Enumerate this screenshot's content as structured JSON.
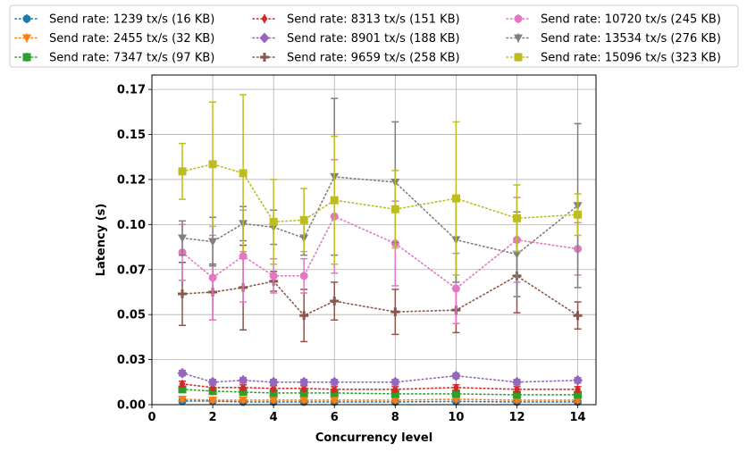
{
  "chart_data": {
    "type": "line",
    "title": "",
    "xlabel": "Concurrency level",
    "ylabel": "Latency (s)",
    "xlim": [
      0,
      14.6
    ],
    "ylim": [
      0,
      0.183
    ],
    "xticks": [
      0,
      2,
      4,
      6,
      8,
      10,
      12,
      14
    ],
    "yticks": [
      0.0,
      0.025,
      0.05,
      0.075,
      0.1,
      0.125,
      0.15,
      0.175
    ],
    "ytick_labels": [
      "0.00",
      "0.03",
      "0.05",
      "0.07",
      "0.10",
      "0.12",
      "0.15",
      "0.17"
    ],
    "grid": true,
    "legend_position": "top, outside plot, 3 columns",
    "x": [
      1,
      2,
      3,
      4,
      5,
      6,
      8,
      10,
      12,
      14
    ],
    "series": [
      {
        "name": "Send rate: 1239 tx/s (16 KB)",
        "color": "#1f77b4",
        "marker": "circle",
        "values": [
          0.002,
          0.002,
          0.0015,
          0.0015,
          0.0015,
          0.0015,
          0.0015,
          0.0018,
          0.0015,
          0.0015
        ],
        "err": [
          0.001,
          0.001,
          0.0008,
          0.0008,
          0.0008,
          0.0008,
          0.0008,
          0.0008,
          0.0008,
          0.0008
        ]
      },
      {
        "name": "Send rate: 2455 tx/s (32 KB)",
        "color": "#ff7f0e",
        "marker": "triangle-down",
        "values": [
          0.003,
          0.0025,
          0.0025,
          0.0025,
          0.0025,
          0.0025,
          0.0025,
          0.003,
          0.0025,
          0.0025
        ],
        "err": [
          0.001,
          0.001,
          0.001,
          0.001,
          0.001,
          0.001,
          0.001,
          0.001,
          0.001,
          0.001
        ]
      },
      {
        "name": "Send rate: 7347 tx/s (97 KB)",
        "color": "#2ca02c",
        "marker": "square",
        "values": [
          0.0085,
          0.0075,
          0.007,
          0.0065,
          0.0065,
          0.0065,
          0.006,
          0.006,
          0.0055,
          0.0055
        ],
        "err": [
          0.0015,
          0.0015,
          0.0015,
          0.0015,
          0.0015,
          0.0015,
          0.0015,
          0.0015,
          0.0015,
          0.0015
        ]
      },
      {
        "name": "Send rate: 8313 tx/s (151 KB)",
        "color": "#d62728",
        "marker": "diamond-thin",
        "values": [
          0.0115,
          0.0095,
          0.0095,
          0.009,
          0.009,
          0.0085,
          0.0085,
          0.0095,
          0.0085,
          0.0085
        ],
        "err": [
          0.0015,
          0.0015,
          0.0015,
          0.0015,
          0.0015,
          0.0015,
          0.0015,
          0.0015,
          0.0015,
          0.0015
        ]
      },
      {
        "name": "Send rate: 8901 tx/s (188 KB)",
        "color": "#9467bd",
        "marker": "diamond",
        "values": [
          0.0175,
          0.0125,
          0.0135,
          0.0125,
          0.0125,
          0.0125,
          0.0125,
          0.016,
          0.0125,
          0.0135
        ],
        "err": [
          0.0015,
          0.0015,
          0.0015,
          0.0015,
          0.0015,
          0.0015,
          0.0015,
          0.0015,
          0.0015,
          0.0015
        ]
      },
      {
        "name": "Send rate: 9659 tx/s (258 KB)",
        "color": "#8c564b",
        "marker": "plus",
        "values": [
          0.0615,
          0.0625,
          0.065,
          0.0685,
          0.0495,
          0.0575,
          0.0515,
          0.0525,
          0.0715,
          0.0495
        ],
        "err": [
          0.0175,
          0.0155,
          0.0235,
          0.0055,
          0.0145,
          0.0105,
          0.0125,
          0.0125,
          0.0205,
          0.0075
        ]
      },
      {
        "name": "Send rate: 10720 tx/s (245 KB)",
        "color": "#e377c2",
        "marker": "circle",
        "values": [
          0.0845,
          0.0705,
          0.0825,
          0.0715,
          0.0715,
          0.1045,
          0.0895,
          0.0645,
          0.0915,
          0.0865
        ],
        "err": [
          0.0155,
          0.0235,
          0.0255,
          0.0095,
          0.0095,
          0.0315,
          0.0235,
          0.0195,
          0.0235,
          0.0145
        ]
      },
      {
        "name": "Send rate: 13534 tx/s (276 KB)",
        "color": "#7f7f7f",
        "marker": "triangle-down",
        "values": [
          0.0925,
          0.0905,
          0.1005,
          0.0985,
          0.0925,
          0.1265,
          0.1235,
          0.0915,
          0.0835,
          0.1105
        ],
        "err": [
          0.0095,
          0.0135,
          0.0095,
          0.0095,
          0.0095,
          0.0435,
          0.0335,
          0.0235,
          0.0235,
          0.0455
        ]
      },
      {
        "name": "Send rate: 15096 tx/s (323 KB)",
        "color": "#bcbd22",
        "marker": "square",
        "values": [
          0.1295,
          0.1335,
          0.1285,
          0.1015,
          0.1025,
          0.1135,
          0.1085,
          0.1145,
          0.1035,
          0.1055
        ],
        "err": [
          0.0155,
          0.0345,
          0.0435,
          0.0235,
          0.0175,
          0.0355,
          0.0215,
          0.0425,
          0.0185,
          0.0115
        ]
      }
    ]
  }
}
